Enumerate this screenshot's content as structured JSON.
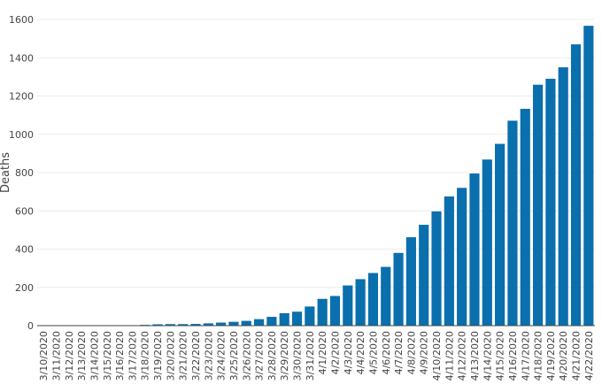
{
  "chart_data": {
    "type": "bar",
    "ylabel": "Deaths",
    "xlabel": "",
    "ylim": [
      0,
      1600
    ],
    "yticks": [
      0,
      200,
      400,
      600,
      800,
      1000,
      1200,
      1400,
      1600
    ],
    "grid": "horizontal",
    "bar_color": "#0a6fad",
    "grid_color": "#ebebeb",
    "categories": [
      "3/10/2020",
      "3/11/2020",
      "3/12/2020",
      "3/13/2020",
      "3/14/2020",
      "3/15/2020",
      "3/16/2020",
      "3/17/2020",
      "3/18/2020",
      "3/19/2020",
      "3/20/2020",
      "3/21/2020",
      "3/22/2020",
      "3/23/2020",
      "3/24/2020",
      "3/25/2020",
      "3/26/2020",
      "3/27/2020",
      "3/28/2020",
      "3/29/2020",
      "3/30/2020",
      "3/31/2020",
      "4/1/2020",
      "4/2/2020",
      "4/3/2020",
      "4/4/2020",
      "4/5/2020",
      "4/6/2020",
      "4/7/2020",
      "4/8/2020",
      "4/9/2020",
      "4/10/2020",
      "4/11/2020",
      "4/12/2020",
      "4/13/2020",
      "4/14/2020",
      "4/15/2020",
      "4/16/2020",
      "4/17/2020",
      "4/18/2020",
      "4/19/2020",
      "4/20/2020",
      "4/21/2020",
      "4/22/2020"
    ],
    "values": [
      0,
      0,
      0,
      0,
      0,
      0,
      0,
      2,
      4,
      7,
      8,
      8,
      9,
      12,
      16,
      20,
      25,
      34,
      46,
      65,
      73,
      100,
      140,
      155,
      210,
      243,
      275,
      307,
      380,
      462,
      527,
      597,
      675,
      720,
      795,
      868,
      950,
      1071,
      1133,
      1259,
      1290,
      1350,
      1470,
      1567
    ]
  }
}
